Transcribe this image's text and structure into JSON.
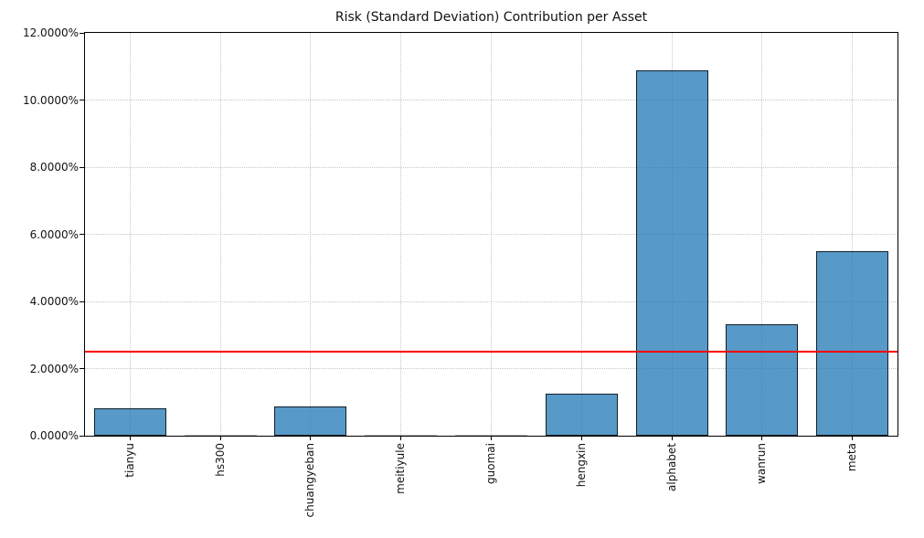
{
  "chart_data": {
    "type": "bar",
    "title": "Risk (Standard Deviation) Contribution per Asset",
    "categories": [
      "tianyu",
      "hs300",
      "chuangyeban",
      "meitiyule",
      "guomai",
      "hengxin",
      "alphabet",
      "wanrun",
      "meta"
    ],
    "values": [
      0.82,
      0.0,
      0.86,
      0.0,
      0.0,
      1.25,
      10.88,
      3.31,
      5.51
    ],
    "unit": "%",
    "xlabel": "",
    "ylabel": "",
    "ylim": [
      0,
      12
    ],
    "ytick_step": 2,
    "ytick_labels": [
      "0.0000%",
      "2.0000%",
      "4.0000%",
      "6.0000%",
      "8.0000%",
      "10.0000%",
      "12.0000%"
    ],
    "threshold_line": {
      "value": 2.5,
      "color": "#ff0000"
    },
    "grid": "dotted, both axes",
    "legend": "none",
    "bar_fill_color": "#5799c7",
    "bar_edge_color": "#333333",
    "x_labels_rotation_deg": 90
  }
}
